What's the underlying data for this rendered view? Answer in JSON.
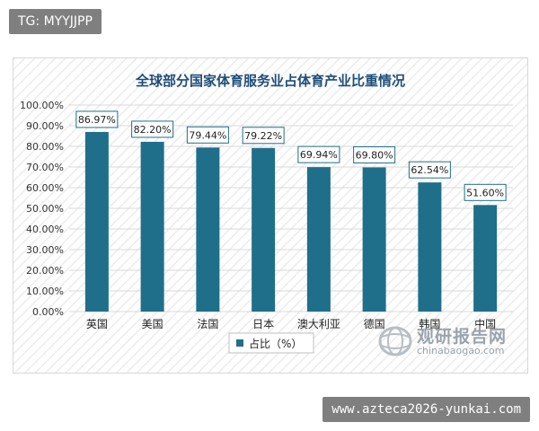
{
  "top_label": "TG: MYYJJPP",
  "footer_label": "www.azteca2026-yunkai.com",
  "watermark": {
    "main": "观研报告网",
    "sub": "chinabaogao.com",
    "icon": "globe-logo-icon"
  },
  "colors": {
    "bar": "#1f6f8b",
    "grid": "#d9d9d9",
    "hatch": "#e6e6e6",
    "label_border": "#1f6f8b"
  },
  "chart_data": {
    "type": "bar",
    "title": "全球部分国家体育服务业占体育产业比重情况",
    "categories": [
      "英国",
      "美国",
      "法国",
      "日本",
      "澳大利亚",
      "德国",
      "韩国",
      "中国"
    ],
    "series": [
      {
        "name": "占比（%）",
        "values": [
          86.97,
          82.2,
          79.44,
          79.22,
          69.94,
          69.8,
          62.54,
          51.6
        ]
      }
    ],
    "data_labels": [
      "86.97%",
      "82.20%",
      "79.44%",
      "79.22%",
      "69.94%",
      "69.80%",
      "62.54%",
      "51.60%"
    ],
    "y_ticks": [
      "0.00%",
      "10.00%",
      "20.00%",
      "30.00%",
      "40.00%",
      "50.00%",
      "60.00%",
      "70.00%",
      "80.00%",
      "90.00%",
      "100.00%"
    ],
    "ylim": [
      0,
      100
    ],
    "grid": true,
    "legend_position": "bottom",
    "legend_label": "占比（%）"
  }
}
